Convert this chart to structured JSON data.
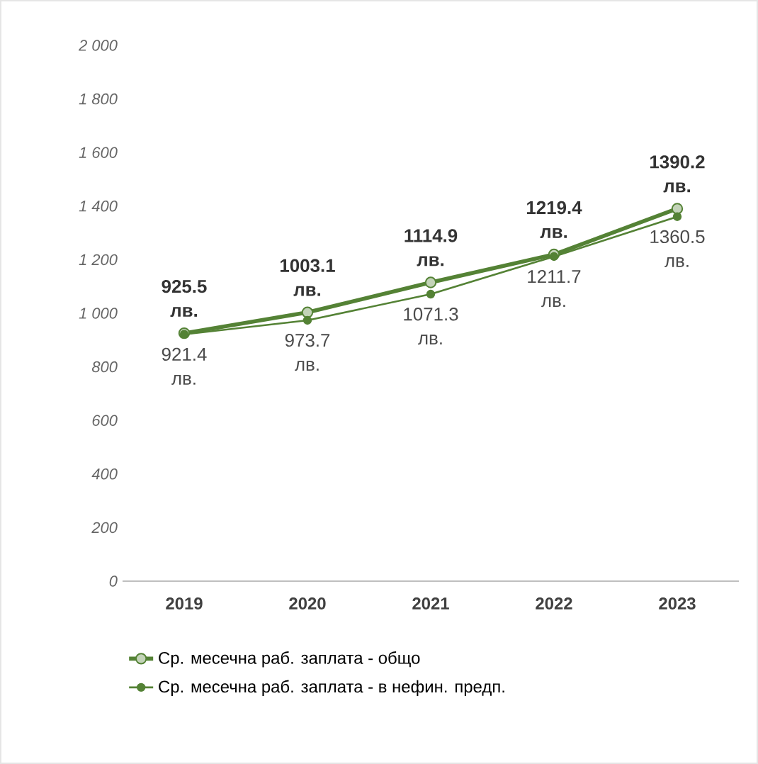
{
  "chart_data": {
    "type": "line",
    "categories": [
      "2019",
      "2020",
      "2021",
      "2022",
      "2023"
    ],
    "series": [
      {
        "name": "Ср. месечна раб. заплата - общо",
        "color": "#548235",
        "values": [
          925.5,
          1003.1,
          1114.9,
          1219.4,
          1390.2
        ],
        "value_labels": [
          "925.5 лв.",
          "1003.1 лв.",
          "1114.9 лв.",
          "1219.4 лв.",
          "1390.2 лв."
        ]
      },
      {
        "name": "Ср. месечна раб. заплата - в нефин. предп.",
        "color": "#548235",
        "values": [
          921.4,
          973.7,
          1071.3,
          1211.7,
          1360.5
        ],
        "value_labels": [
          "921.4 лв.",
          "973.7 лв.",
          "1071.3 лв.",
          "1211.7 лв.",
          "1360.5 лв."
        ]
      }
    ],
    "ylim": [
      0,
      2000
    ],
    "yticks": [
      0,
      200,
      400,
      600,
      800,
      {
        "value": 1000,
        "label": "1 000"
      },
      {
        "value": 1200,
        "label": "1 200"
      },
      {
        "value": 1400,
        "label": "1 400"
      },
      {
        "value": 1600,
        "label": "1 600"
      },
      {
        "value": 1800,
        "label": "1 800"
      },
      {
        "value": 2000,
        "label": "2 000"
      }
    ],
    "legend": "bottom",
    "marker": "circle"
  }
}
